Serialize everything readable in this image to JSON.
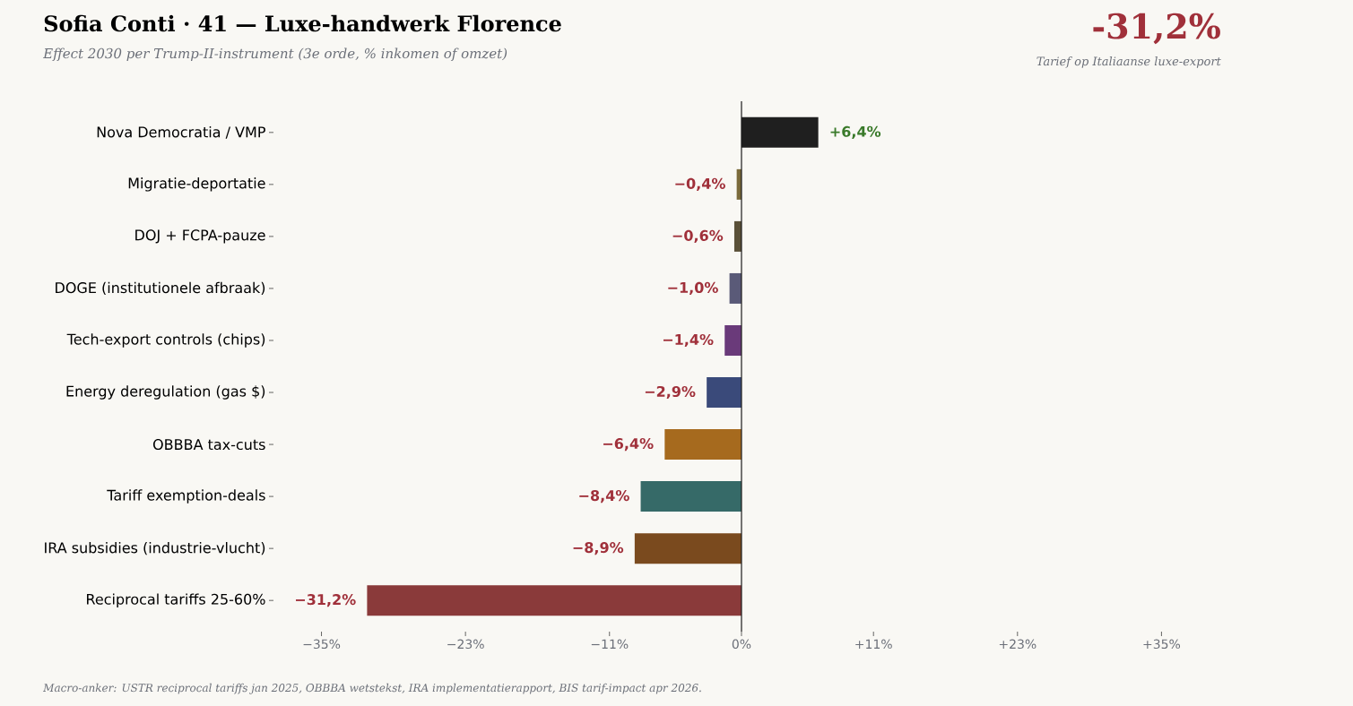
{
  "chart_data": {
    "type": "bar",
    "orientation": "horizontal",
    "title": "Sofia Conti · 41 — Luxe-handwerk Florence",
    "subtitle": "Effect 2030 per Trump-II-instrument (3e orde, % inkomen of omzet)",
    "annotations": [
      "-31,2%",
      "Tarief op Italiaanse luxe-export",
      "Macro-anker: USTR reciprocal tariffs jan 2025, OBBBA wetstekst, IRA implementatierapport, BIS tarif-impact apr 2026."
    ],
    "categories": [
      "Nova Democratia / VMP",
      "Migratie-deportatie",
      "DOJ + FCPA-pauze",
      "DOGE (institutionele afbraak)",
      "Tech-export controls (chips)",
      "Energy deregulation (gas $)",
      "OBBBA tax-cuts",
      "Tariff exemption-deals",
      "IRA subsidies (industrie-vlucht)",
      "Reciprocal tariffs 25-60%"
    ],
    "values": [
      6.4,
      -0.4,
      -0.6,
      -1.0,
      -1.4,
      -2.9,
      -6.4,
      -8.4,
      -8.9,
      -31.2
    ],
    "colors": [
      "#1f1f1f",
      "#7a6a3a",
      "#5a5038",
      "#5a5a78",
      "#6a3a7a",
      "#3a4a7a",
      "#a66a1e",
      "#366a68",
      "#7a4a1e",
      "#8a3a3a"
    ],
    "value_labels": [
      "+6,4%",
      "−0,4%",
      "−0,6%",
      "−1,0%",
      "−1,4%",
      "−2,9%",
      "−6,4%",
      "−8,4%",
      "−8,9%",
      "−31,2%"
    ],
    "xlim": [
      -35,
      35
    ],
    "xticks": [
      {
        "value": -35,
        "label": "−35%"
      },
      {
        "value": -23,
        "label": "−23%"
      },
      {
        "value": -11,
        "label": "−11%"
      },
      {
        "value": 0,
        "label": "0%"
      },
      {
        "value": 11,
        "label": "+11%"
      },
      {
        "value": 23,
        "label": "+23%"
      },
      {
        "value": 35,
        "label": "+35%"
      }
    ],
    "ref_lines": [
      {
        "axis": "x",
        "value": 0,
        "color": "#1a1a1a"
      }
    ]
  }
}
